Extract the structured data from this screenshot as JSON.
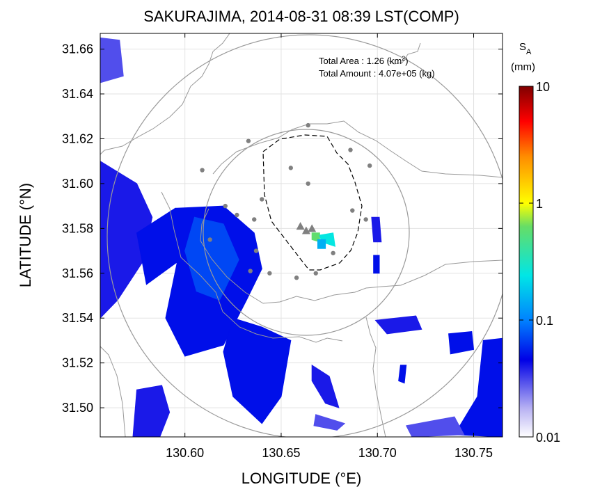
{
  "chart_data": {
    "type": "heatmap",
    "title": "SAKURAJIMA, 2014-08-31 08:39 LST(COMP)",
    "xlabel": "LONGITUDE (°E)",
    "ylabel": "LATITUDE (°N)",
    "xlim": [
      130.556,
      130.765
    ],
    "ylim": [
      31.487,
      31.667
    ],
    "xticks": [
      "130.60",
      "130.65",
      "130.70",
      "130.75"
    ],
    "xtick_values": [
      130.6,
      130.65,
      130.7,
      130.75
    ],
    "yticks": [
      "31.50",
      "31.52",
      "31.54",
      "31.56",
      "31.58",
      "31.60",
      "31.62",
      "31.64",
      "31.66"
    ],
    "ytick_values": [
      31.5,
      31.52,
      31.54,
      31.56,
      31.58,
      31.6,
      31.62,
      31.64,
      31.66
    ],
    "grid": true,
    "annotations": {
      "area_label": "Total Area   : 1.26 (km",
      "area_sup": "2",
      "area_end": ")",
      "amount_label": "Total Amount : 4.07e+05 (kg)"
    },
    "colorbar": {
      "label_main": "S",
      "label_sub": "A",
      "label_unit": "(mm)",
      "scale": "log",
      "ticks": [
        "10",
        "1",
        "0.1",
        "0.01"
      ],
      "tick_values": [
        10,
        1,
        0.1,
        0.01
      ]
    },
    "craters": [
      [
        130.66,
        31.581
      ],
      [
        130.663,
        31.579
      ],
      [
        130.666,
        31.58
      ]
    ],
    "stations": [
      [
        130.664,
        31.626
      ],
      [
        130.633,
        31.619
      ],
      [
        130.686,
        31.615
      ],
      [
        130.609,
        31.606
      ],
      [
        130.655,
        31.607
      ],
      [
        130.664,
        31.6
      ],
      [
        130.696,
        31.608
      ],
      [
        130.64,
        31.593
      ],
      [
        130.621,
        31.59
      ],
      [
        130.687,
        31.588
      ],
      [
        130.627,
        31.586
      ],
      [
        130.636,
        31.584
      ],
      [
        130.694,
        31.584
      ],
      [
        130.613,
        31.575
      ],
      [
        130.637,
        31.57
      ],
      [
        130.677,
        31.569
      ],
      [
        130.634,
        31.561
      ],
      [
        130.644,
        31.56
      ],
      [
        130.658,
        31.558
      ],
      [
        130.668,
        31.56
      ]
    ],
    "echo_regions": [
      {
        "level": 0.04,
        "points": [
          [
            130.556,
            31.61
          ],
          [
            130.575,
            31.6
          ],
          [
            130.583,
            31.585
          ],
          [
            130.578,
            31.565
          ],
          [
            130.565,
            31.548
          ],
          [
            130.556,
            31.54
          ]
        ]
      },
      {
        "level": 0.05,
        "points": [
          [
            130.575,
            31.578
          ],
          [
            130.595,
            31.589
          ],
          [
            130.62,
            31.59
          ],
          [
            130.636,
            31.578
          ],
          [
            130.64,
            31.562
          ],
          [
            130.632,
            31.548
          ],
          [
            130.62,
            31.528
          ],
          [
            130.6,
            31.523
          ],
          [
            130.59,
            31.54
          ],
          [
            130.596,
            31.565
          ],
          [
            130.58,
            31.555
          ]
        ]
      },
      {
        "level": 0.07,
        "points": [
          [
            130.605,
            31.585
          ],
          [
            130.62,
            31.582
          ],
          [
            130.628,
            31.566
          ],
          [
            130.618,
            31.548
          ],
          [
            130.606,
            31.552
          ],
          [
            130.6,
            31.57
          ]
        ]
      },
      {
        "level": 0.05,
        "points": [
          [
            130.625,
            31.54
          ],
          [
            130.64,
            31.536
          ],
          [
            130.655,
            31.53
          ],
          [
            130.65,
            31.505
          ],
          [
            130.64,
            31.493
          ],
          [
            130.625,
            31.505
          ],
          [
            130.62,
            31.525
          ]
        ]
      },
      {
        "level": 0.04,
        "points": [
          [
            130.575,
            31.508
          ],
          [
            130.588,
            31.51
          ],
          [
            130.592,
            31.498
          ],
          [
            130.587,
            31.487
          ],
          [
            130.573,
            31.487
          ]
        ]
      },
      {
        "level": 0.03,
        "points": [
          [
            130.556,
            31.665
          ],
          [
            130.566,
            31.664
          ],
          [
            130.568,
            31.648
          ],
          [
            130.556,
            31.645
          ]
        ]
      },
      {
        "level": 0.04,
        "points": [
          [
            130.699,
            31.539
          ],
          [
            130.72,
            31.541
          ],
          [
            130.723,
            31.535
          ],
          [
            130.705,
            31.533
          ]
        ]
      },
      {
        "level": 0.05,
        "points": [
          [
            130.737,
            31.533
          ],
          [
            130.749,
            31.534
          ],
          [
            130.75,
            31.526
          ],
          [
            130.738,
            31.524
          ]
        ]
      },
      {
        "level": 0.05,
        "points": [
          [
            130.755,
            31.53
          ],
          [
            130.765,
            31.531
          ],
          [
            130.765,
            31.487
          ],
          [
            130.74,
            31.488
          ],
          [
            130.752,
            31.505
          ]
        ]
      },
      {
        "level": 0.03,
        "points": [
          [
            130.715,
            31.492
          ],
          [
            130.74,
            31.496
          ],
          [
            130.745,
            31.488
          ],
          [
            130.718,
            31.487
          ]
        ]
      },
      {
        "level": 0.04,
        "points": [
          [
            130.666,
            31.519
          ],
          [
            130.675,
            31.514
          ],
          [
            130.68,
            31.5
          ],
          [
            130.673,
            31.502
          ],
          [
            130.666,
            31.512
          ]
        ]
      },
      {
        "level": 0.03,
        "points": [
          [
            130.668,
            31.497
          ],
          [
            130.683,
            31.493
          ],
          [
            130.679,
            31.49
          ],
          [
            130.667,
            31.492
          ]
        ]
      },
      {
        "level": 0.04,
        "points": [
          [
            130.697,
            31.585
          ],
          [
            130.701,
            31.585
          ],
          [
            130.702,
            31.574
          ],
          [
            130.698,
            31.574
          ]
        ]
      },
      {
        "level": 0.05,
        "points": [
          [
            130.698,
            31.568
          ],
          [
            130.701,
            31.568
          ],
          [
            130.701,
            31.56
          ],
          [
            130.698,
            31.56
          ]
        ]
      },
      {
        "level": 0.05,
        "points": [
          [
            130.712,
            31.519
          ],
          [
            130.715,
            31.519
          ],
          [
            130.714,
            31.511
          ],
          [
            130.711,
            31.512
          ]
        ]
      },
      {
        "level": 0.6,
        "points": [
          [
            130.666,
            31.578
          ],
          [
            130.67,
            31.578
          ],
          [
            130.67,
            31.574
          ],
          [
            130.666,
            31.575
          ]
        ]
      },
      {
        "level": 0.25,
        "points": [
          [
            130.67,
            31.577
          ],
          [
            130.677,
            31.578
          ],
          [
            130.678,
            31.572
          ],
          [
            130.671,
            31.574
          ]
        ]
      },
      {
        "level": 0.15,
        "points": [
          [
            130.669,
            31.575
          ],
          [
            130.673,
            31.575
          ],
          [
            130.673,
            31.571
          ],
          [
            130.669,
            31.571
          ]
        ]
      }
    ]
  }
}
